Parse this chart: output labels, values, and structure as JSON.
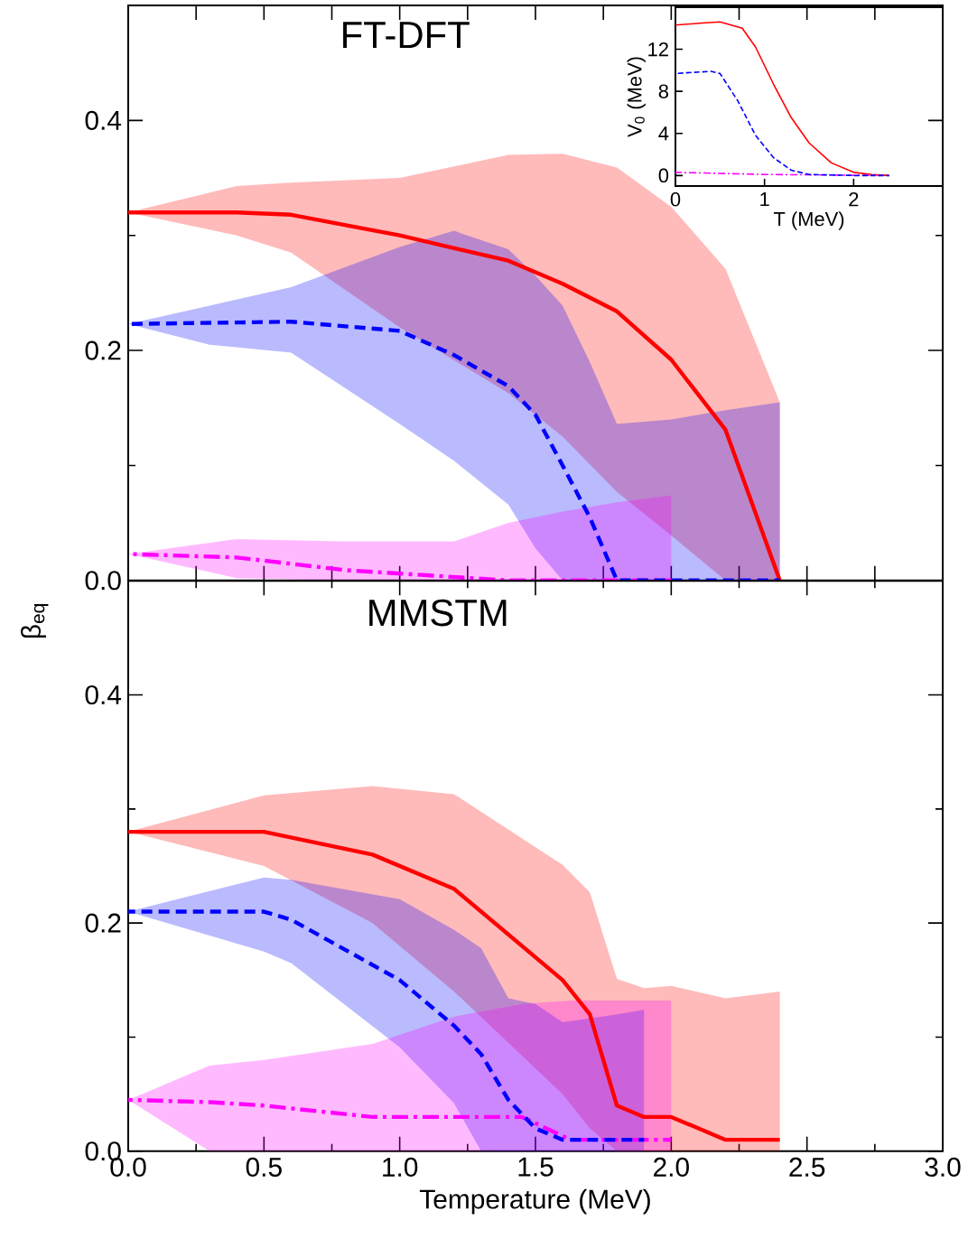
{
  "chart_data": [
    {
      "type": "line",
      "title": "FT-DFT",
      "xlim": [
        0,
        3
      ],
      "ylim": [
        0,
        0.5
      ],
      "tick_labels": "y",
      "xticks": [
        {
          "value": 0,
          "label": null
        },
        {
          "value": 0.25,
          "label": null
        },
        {
          "value": 0.5,
          "label": null
        },
        {
          "value": 0.75,
          "label": null
        },
        {
          "value": 1,
          "label": null
        },
        {
          "value": 1.25,
          "label": null
        },
        {
          "value": 1.5,
          "label": null
        },
        {
          "value": 1.75,
          "label": null
        },
        {
          "value": 2,
          "label": null
        },
        {
          "value": 2.25,
          "label": null
        },
        {
          "value": 2.5,
          "label": null
        },
        {
          "value": 2.75,
          "label": null
        },
        {
          "value": 3,
          "label": null
        }
      ],
      "yticks": [
        {
          "value": 0,
          "label": "0.0"
        },
        {
          "value": 0.1,
          "label": null
        },
        {
          "value": 0.2,
          "label": "0.2"
        },
        {
          "value": 0.3,
          "label": null
        },
        {
          "value": 0.4,
          "label": "0.4"
        }
      ],
      "series": [
        {
          "color": "#ff0000",
          "line_style": "solid",
          "x": [
            0,
            0.4,
            0.6,
            1.0,
            1.4,
            1.6,
            1.8,
            2.0,
            2.2,
            2.4
          ],
          "values": [
            0.32,
            0.32,
            0.318,
            0.3,
            0.278,
            0.258,
            0.234,
            0.192,
            0.131,
            0
          ],
          "upper": [
            0.32,
            0.343,
            0.346,
            0.35,
            0.37,
            0.371,
            0.359,
            0.325,
            0.271,
            0.155
          ],
          "lower": [
            0.32,
            0.3,
            0.285,
            0.22,
            0.163,
            0.125,
            0.077,
            0.039,
            0,
            0
          ]
        },
        {
          "color": "#0000ff",
          "line_style": "dashed",
          "x": [
            0,
            0.3,
            0.6,
            1.0,
            1.2,
            1.4,
            1.5,
            1.6,
            1.7,
            1.8,
            2.0,
            2.2,
            2.4
          ],
          "values": [
            0.223,
            0.224,
            0.225,
            0.217,
            0.196,
            0.169,
            0.144,
            0.1,
            0.055,
            0,
            0,
            0,
            0
          ],
          "upper": [
            0.223,
            0.239,
            0.255,
            0.29,
            0.304,
            0.288,
            0.265,
            0.239,
            0.19,
            0.136,
            0.14,
            0.148,
            0.155
          ],
          "lower": [
            0.223,
            0.205,
            0.198,
            0.136,
            0.104,
            0.066,
            0.028,
            0,
            0,
            0,
            0,
            0,
            0
          ]
        },
        {
          "color": "#ff00ff",
          "line_style": "dashdot",
          "x": [
            0,
            0.4,
            0.8,
            1.2,
            1.4,
            1.6,
            1.8,
            2.0
          ],
          "values": [
            0.023,
            0.02,
            0.009,
            0.003,
            0,
            0,
            0,
            0
          ],
          "upper": [
            0.023,
            0.036,
            0.034,
            0.034,
            0.05,
            0.06,
            0.068,
            0.074
          ],
          "lower": [
            0.023,
            0.002,
            0,
            0,
            0,
            0,
            0,
            0
          ]
        }
      ]
    },
    {
      "type": "line",
      "title": "MMSTM",
      "xlabel": "Temperature (MeV)",
      "ylabel": "β$_{eq}$",
      "xlim": [
        0,
        3
      ],
      "ylim": [
        0,
        0.5
      ],
      "xticks": [
        {
          "value": 0,
          "label": "0.0"
        },
        {
          "value": 0.25,
          "label": null
        },
        {
          "value": 0.5,
          "label": "0.5"
        },
        {
          "value": 0.75,
          "label": null
        },
        {
          "value": 1,
          "label": "1.0"
        },
        {
          "value": 1.25,
          "label": null
        },
        {
          "value": 1.5,
          "label": "1.5"
        },
        {
          "value": 1.75,
          "label": null
        },
        {
          "value": 2,
          "label": "2.0"
        },
        {
          "value": 2.25,
          "label": null
        },
        {
          "value": 2.5,
          "label": "2.5"
        },
        {
          "value": 2.75,
          "label": null
        },
        {
          "value": 3,
          "label": "3.0"
        }
      ],
      "yticks": [
        {
          "value": 0,
          "label": "0.0"
        },
        {
          "value": 0.1,
          "label": null
        },
        {
          "value": 0.2,
          "label": "0.2"
        },
        {
          "value": 0.3,
          "label": null
        },
        {
          "value": 0.4,
          "label": "0.4"
        }
      ],
      "series": [
        {
          "color": "#ff0000",
          "line_style": "solid",
          "x": [
            0,
            0.5,
            0.9,
            1.2,
            1.6,
            1.7,
            1.8,
            1.9,
            2.0,
            2.2,
            2.4
          ],
          "values": [
            0.28,
            0.28,
            0.26,
            0.23,
            0.15,
            0.12,
            0.04,
            0.03,
            0.03,
            0.01,
            0.01
          ],
          "upper": [
            0.28,
            0.312,
            0.32,
            0.313,
            0.251,
            0.227,
            0.151,
            0.143,
            0.145,
            0.134,
            0.14
          ],
          "lower": [
            0.28,
            0.25,
            0.2,
            0.14,
            0.05,
            0.02,
            0,
            0,
            0,
            0,
            0
          ]
        },
        {
          "color": "#0000ff",
          "line_style": "dashed",
          "x": [
            0,
            0.5,
            0.6,
            1.0,
            1.2,
            1.3,
            1.4,
            1.5,
            1.6,
            1.8,
            1.9
          ],
          "values": [
            0.21,
            0.21,
            0.203,
            0.15,
            0.11,
            0.085,
            0.045,
            0.02,
            0.01,
            0.01,
            0.01
          ],
          "upper": [
            0.21,
            0.24,
            0.238,
            0.221,
            0.194,
            0.178,
            0.134,
            0.129,
            0.113,
            0.12,
            0.124
          ],
          "lower": [
            0.21,
            0.175,
            0.165,
            0.091,
            0.042,
            0,
            0,
            0,
            0,
            0,
            0
          ]
        },
        {
          "color": "#ff00ff",
          "line_style": "dashdot",
          "x": [
            0,
            0.3,
            0.5,
            0.9,
            1.2,
            1.45,
            1.63,
            2.0
          ],
          "values": [
            0.045,
            0.043,
            0.04,
            0.03,
            0.03,
            0.03,
            0.01,
            0.01
          ],
          "upper": [
            0.045,
            0.075,
            0.08,
            0.094,
            0.118,
            0.129,
            0.132,
            0.132
          ],
          "lower": [
            0.045,
            0,
            0,
            0,
            0,
            0,
            0,
            0
          ]
        }
      ]
    },
    {
      "type": "line",
      "xlabel": "T (MeV)",
      "ylabel": "V$_{0}$ (MeV)",
      "xlim": [
        0,
        3
      ],
      "ylim": [
        -1,
        16
      ],
      "xticks": [
        0,
        1,
        2
      ],
      "yticks": [
        0,
        4,
        8,
        12
      ],
      "series": [
        {
          "color": "#ff0000",
          "line_style": "solid",
          "x": [
            0,
            0.3,
            0.5,
            0.75,
            0.9,
            1.1,
            1.3,
            1.5,
            1.75,
            2.0,
            2.2,
            2.4
          ],
          "values": [
            14.3,
            14.5,
            14.6,
            14.0,
            12.2,
            8.7,
            5.5,
            3.1,
            1.2,
            0.3,
            0.1,
            0
          ]
        },
        {
          "color": "#0000ff",
          "line_style": "dashed",
          "x": [
            0,
            0.4,
            0.5,
            0.7,
            0.9,
            1.1,
            1.3,
            1.5,
            2.0,
            2.4
          ],
          "values": [
            9.7,
            9.9,
            9.7,
            7.1,
            3.8,
            1.7,
            0.5,
            0.1,
            0,
            0
          ]
        },
        {
          "color": "#ff00ff",
          "line_style": "dashdot",
          "x": [
            0,
            1,
            2.3
          ],
          "values": [
            0.3,
            0.1,
            0
          ]
        }
      ]
    }
  ]
}
